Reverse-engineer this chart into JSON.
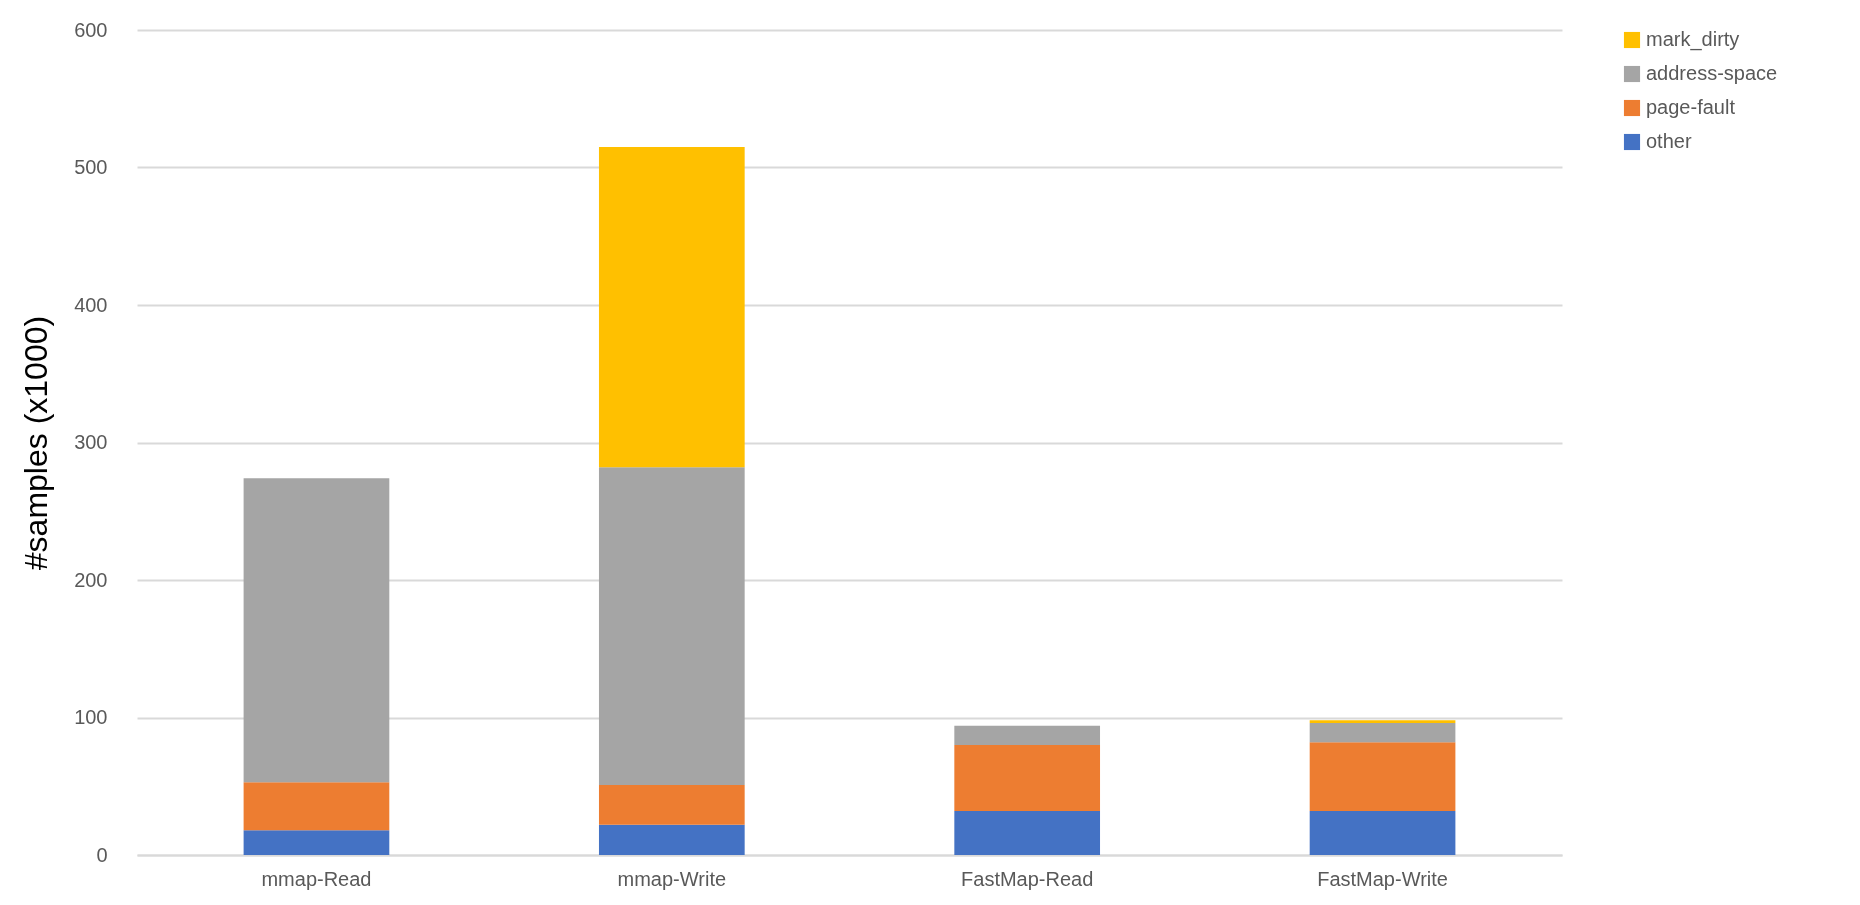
{
  "chart_data": {
    "type": "bar",
    "stacked": true,
    "ylabel": "#samples (x1000)",
    "categories": [
      "mmap-Read",
      "mmap-Write",
      "FastMap-Read",
      "FastMap-Write"
    ],
    "series": [
      {
        "name": "other",
        "color": "#4472c4",
        "values": [
          18,
          22,
          32,
          32
        ]
      },
      {
        "name": "page-fault",
        "color": "#ed7d31",
        "values": [
          35,
          29,
          48,
          50
        ]
      },
      {
        "name": "address-space",
        "color": "#a5a5a5",
        "values": [
          221,
          231,
          14,
          14
        ]
      },
      {
        "name": "mark_dirty",
        "color": "#ffc000",
        "values": [
          0,
          233,
          0,
          2
        ]
      }
    ],
    "ylim": [
      0,
      600
    ],
    "yticks": [
      0,
      100,
      200,
      300,
      400,
      500,
      600
    ],
    "grid": "y",
    "legend": "right"
  }
}
